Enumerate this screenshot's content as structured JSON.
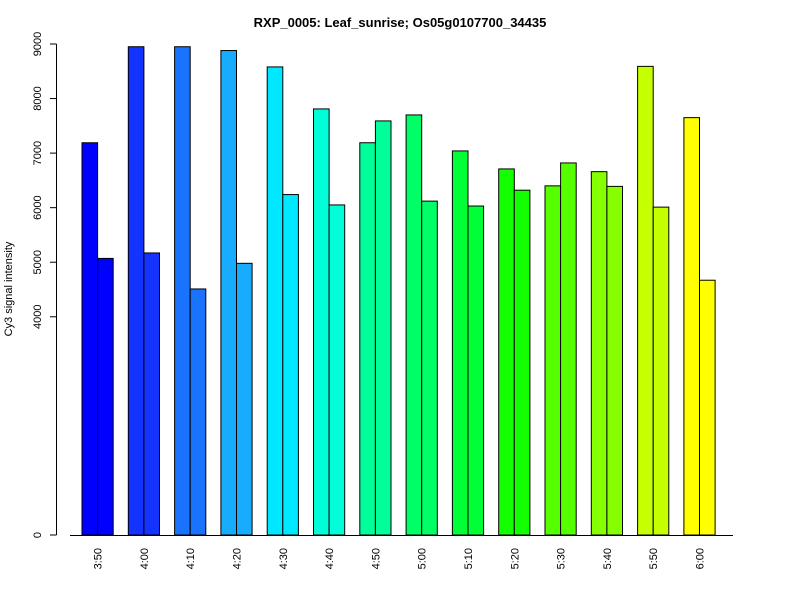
{
  "chart_data": {
    "type": "bar",
    "title": "RXP_0005: Leaf_sunrise; Os05g0107700_34435",
    "xlabel": "",
    "ylabel": "Cy3 signal intensity",
    "ylim": [
      0,
      9000
    ],
    "yticks": [
      0,
      4000,
      5000,
      6000,
      7000,
      8000,
      9000
    ],
    "grid": false,
    "categories": [
      "3:50",
      "4:00",
      "4:10",
      "4:20",
      "4:30",
      "4:40",
      "4:50",
      "5:00",
      "5:10",
      "5:20",
      "5:30",
      "5:40",
      "5:50",
      "6:00"
    ],
    "colors": [
      "#0000ff",
      "#1433ff",
      "#1a73ff",
      "#18acff",
      "#00e8ff",
      "#00ffd8",
      "#00ff98",
      "#00ff66",
      "#00ff36",
      "#14ff00",
      "#55ff00",
      "#86ff00",
      "#c6ff00",
      "#ffff00"
    ],
    "series": [
      {
        "values": [
          7190,
          8950,
          8950,
          8880,
          8580,
          7810,
          7190,
          7700,
          7040,
          6710,
          6400,
          6660,
          8590,
          7650
        ]
      },
      {
        "values": [
          5070,
          5170,
          4510,
          4980,
          6240,
          6050,
          7590,
          6120,
          6030,
          6320,
          6820,
          6390,
          6010,
          4670
        ]
      }
    ]
  }
}
